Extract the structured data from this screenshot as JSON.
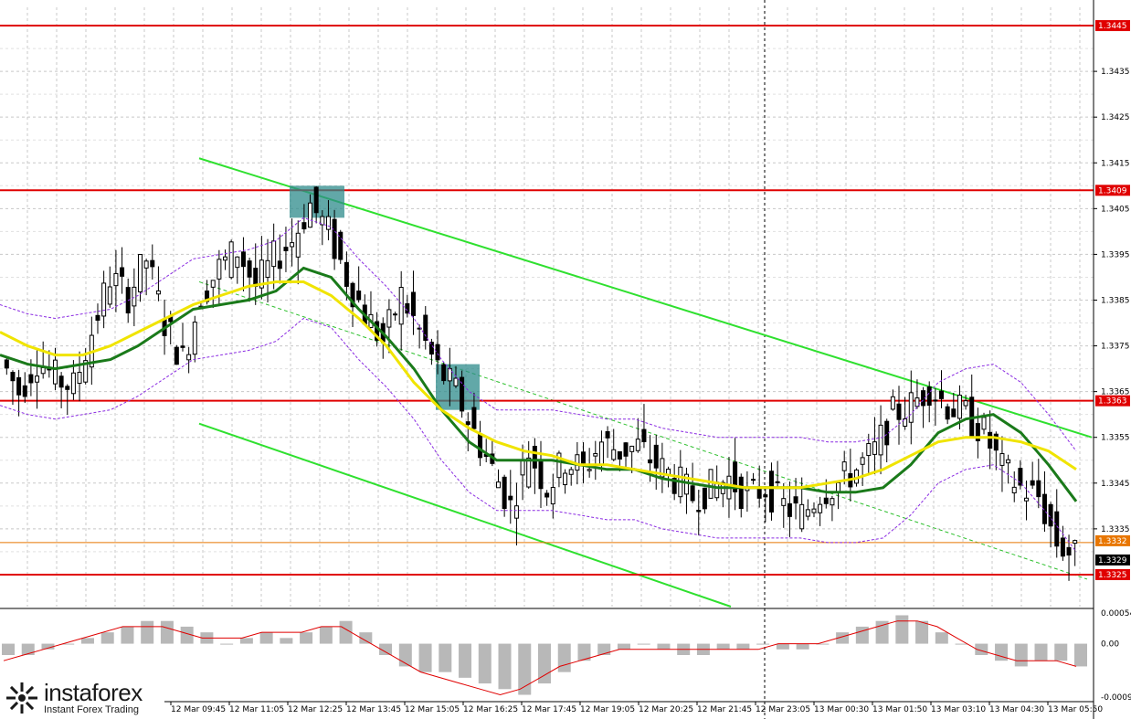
{
  "chart_data": {
    "type": "candlestick",
    "symbol_note": "",
    "price_axis": {
      "min": 1.3318,
      "max": 1.3449,
      "ticks": [
        "1.3335",
        "1.3345",
        "1.3355",
        "1.3365",
        "1.3375",
        "1.3385",
        "1.3395",
        "1.3405",
        "1.3415",
        "1.3425",
        "1.3435"
      ]
    },
    "time_labels": [
      "12 Mar 09:45",
      "12 Mar 11:05",
      "12 Mar 12:25",
      "12 Mar 13:45",
      "12 Mar 15:05",
      "12 Mar 16:25",
      "12 Mar 17:45",
      "12 Mar 19:05",
      "12 Mar 20:25",
      "12 Mar 21:45",
      "12 Mar 23:05",
      "13 Mar 00:30",
      "13 Mar 01:50",
      "13 Mar 03:10",
      "13 Mar 04:30",
      "13 Mar 05:50"
    ],
    "levels": [
      {
        "label": "1.3445",
        "value": 1.3445,
        "color": "#e00000"
      },
      {
        "label": "1.3409",
        "value": 1.3409,
        "color": "#e00000"
      },
      {
        "label": "1.3363",
        "value": 1.3363,
        "color": "#e00000"
      },
      {
        "label": "1.3325",
        "value": 1.3325,
        "color": "#e00000"
      }
    ],
    "price_markers": [
      {
        "label": "1.3332",
        "value": 1.3332,
        "color": "#e87600"
      },
      {
        "label": "1.3329",
        "value": 1.3329,
        "color": "#000000"
      }
    ],
    "close_points": [
      1.3372,
      1.3365,
      1.3372,
      1.3368,
      1.3366,
      1.3378,
      1.339,
      1.3386,
      1.3394,
      1.338,
      1.3372,
      1.3386,
      1.3392,
      1.3396,
      1.3388,
      1.3394,
      1.3398,
      1.3406,
      1.34,
      1.339,
      1.3382,
      1.3376,
      1.3386,
      1.3378,
      1.337,
      1.3365,
      1.3356,
      1.3348,
      1.334,
      1.3352,
      1.3344,
      1.335,
      1.3348,
      1.3354,
      1.3352,
      1.3353,
      1.3349,
      1.3346,
      1.3342,
      1.3344,
      1.3346,
      1.3342,
      1.3344,
      1.334,
      1.3338,
      1.3343,
      1.3345,
      1.3348,
      1.3352,
      1.336,
      1.3362,
      1.3366,
      1.3362,
      1.336,
      1.3356,
      1.3348,
      1.3344,
      1.3342,
      1.3332,
      1.3329
    ],
    "series": [
      {
        "name": "",
        "kind": "fast-ma",
        "color": "#1a7a1a",
        "values": [
          1.3373,
          1.3371,
          1.337,
          1.3371,
          1.3372,
          1.3375,
          1.3379,
          1.3383,
          1.3384,
          1.3385,
          1.3387,
          1.3392,
          1.339,
          1.3383,
          1.3377,
          1.337,
          1.3361,
          1.3354,
          1.335,
          1.335,
          1.335,
          1.3349,
          1.3348,
          1.3348,
          1.3346,
          1.3345,
          1.3344,
          1.3344,
          1.3344,
          1.3344,
          1.3343,
          1.3343,
          1.3344,
          1.3349,
          1.3356,
          1.3359,
          1.336,
          1.3356,
          1.3349,
          1.3341
        ]
      },
      {
        "name": "",
        "kind": "slow-ma",
        "color": "#f0e400",
        "values": [
          1.3378,
          1.3375,
          1.3373,
          1.3373,
          1.3375,
          1.3378,
          1.3381,
          1.3384,
          1.3386,
          1.3388,
          1.3389,
          1.3389,
          1.3386,
          1.3381,
          1.3375,
          1.3367,
          1.3361,
          1.3357,
          1.3354,
          1.3352,
          1.3351,
          1.3349,
          1.3349,
          1.3348,
          1.3347,
          1.3346,
          1.3345,
          1.3344,
          1.3344,
          1.3344,
          1.3345,
          1.3346,
          1.3348,
          1.3351,
          1.3354,
          1.3355,
          1.3355,
          1.3354,
          1.3352,
          1.3348
        ]
      }
    ],
    "trend_channel": [
      {
        "from": [
          1.3416,
          0
        ],
        "to": [
          1.3355,
          1
        ]
      },
      {
        "from": [
          1.3358,
          0
        ],
        "to": [
          1.3295,
          1
        ]
      }
    ],
    "entry_boxes": [
      {
        "top": 1.341,
        "bottom": 1.3403
      },
      {
        "top": 1.3371,
        "bottom": 1.3361
      }
    ],
    "oscillator": {
      "ticks": [
        "0.00054",
        "0.00",
        "-0.00094"
      ],
      "values": [
        -0.0002,
        -0.0002,
        -0.0001,
        0.0,
        0.0001,
        0.0002,
        0.0003,
        0.0004,
        0.0004,
        0.0003,
        0.0002,
        0.0,
        0.0001,
        0.0002,
        0.0001,
        0.0002,
        0.0003,
        0.0004,
        0.0002,
        -0.0002,
        -0.0004,
        -0.0005,
        -0.0005,
        -0.0006,
        -0.0007,
        -0.0008,
        -0.0009,
        -0.0007,
        -0.0005,
        -0.0003,
        -0.0002,
        -0.0001,
        0.0,
        -0.0001,
        -0.0002,
        -0.0002,
        -0.0001,
        -0.0001,
        0.0,
        -0.0001,
        -0.0001,
        0.0,
        0.0002,
        0.0003,
        0.0004,
        0.0005,
        0.0004,
        0.0002,
        0.0,
        -0.0002,
        -0.0003,
        -0.0004,
        -0.0003,
        -0.0003,
        -0.0004
      ],
      "signal": [
        -0.0003,
        -0.0002,
        -0.0001,
        0.0,
        0.0001,
        0.0002,
        0.0003,
        0.0003,
        0.0003,
        0.0002,
        0.0001,
        0.0001,
        0.0001,
        0.0002,
        0.0002,
        0.0002,
        0.0003,
        0.0003,
        0.0001,
        -0.0001,
        -0.0003,
        -0.0005,
        -0.0006,
        -0.0007,
        -0.0008,
        -0.0009,
        -0.0008,
        -0.0006,
        -0.0004,
        -0.0003,
        -0.0002,
        -0.0001,
        -0.0001,
        -0.0001,
        -0.0001,
        -0.0001,
        -0.0001,
        -0.0001,
        -0.0001,
        0.0,
        0.0,
        0.0,
        0.0001,
        0.0002,
        0.0003,
        0.0004,
        0.0004,
        0.0003,
        0.0001,
        -0.0001,
        -0.0002,
        -0.0003,
        -0.0003,
        -0.0003,
        -0.0004
      ],
      "range": [
        -0.00094,
        0.00054
      ]
    },
    "grid": true
  },
  "logo": {
    "name": "instaforex",
    "tagline": "Instant Forex Trading"
  }
}
